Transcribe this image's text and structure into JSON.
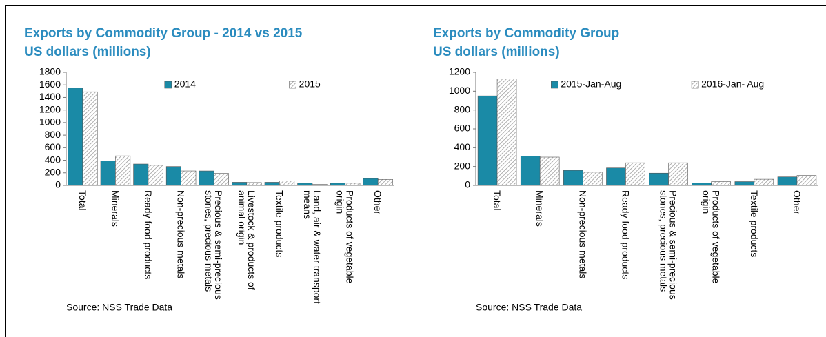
{
  "chart_data": [
    {
      "type": "bar",
      "title": "Exports by Commodity Group - 2014 vs 2015",
      "subtitle": "US dollars (millions)",
      "note": "Source: NSS Trade Data",
      "categories": [
        "Total",
        "Minerals",
        "Ready food products",
        "Non-precious metals",
        "Precious & semi-precious stones, precious metals",
        "Livestock & products of animal origin",
        "Textile products",
        "Land, air & water transport means",
        "Products of vegetable origin",
        "Other"
      ],
      "series": [
        {
          "name": "2014",
          "color": "#1a8aa6",
          "pattern": "solid",
          "values": [
            1550,
            390,
            340,
            300,
            230,
            50,
            50,
            35,
            35,
            110
          ]
        },
        {
          "name": "2015",
          "color": "#9a9a9a",
          "pattern": "hatch",
          "values": [
            1490,
            470,
            320,
            230,
            190,
            45,
            70,
            15,
            35,
            95
          ]
        }
      ],
      "ylim": [
        0,
        1800
      ],
      "yticks": [
        0,
        200,
        400,
        600,
        800,
        1000,
        1200,
        1400,
        1600,
        1800
      ],
      "legend": "top",
      "grid": false
    },
    {
      "type": "bar",
      "title": "Exports by Commodity Group",
      "subtitle": "US dollars (millions)",
      "note": "Source: NSS Trade Data",
      "categories": [
        "Total",
        "Minerals",
        "Non-precious metals",
        "Ready food products",
        "Precious & semi-precious stones, precious metals",
        "Products of vegetable origin",
        "Textile products",
        "Other"
      ],
      "series": [
        {
          "name": "2015-Jan-Aug",
          "color": "#1a8aa6",
          "pattern": "solid",
          "values": [
            950,
            310,
            160,
            185,
            130,
            25,
            40,
            90
          ]
        },
        {
          "name": "2016-Jan- Aug",
          "color": "#9a9a9a",
          "pattern": "hatch",
          "values": [
            1130,
            300,
            140,
            240,
            240,
            40,
            65,
            105
          ]
        }
      ],
      "ylim": [
        0,
        1200
      ],
      "yticks": [
        0,
        200,
        400,
        600,
        800,
        1000,
        1200
      ],
      "legend": "top",
      "grid": false
    }
  ]
}
